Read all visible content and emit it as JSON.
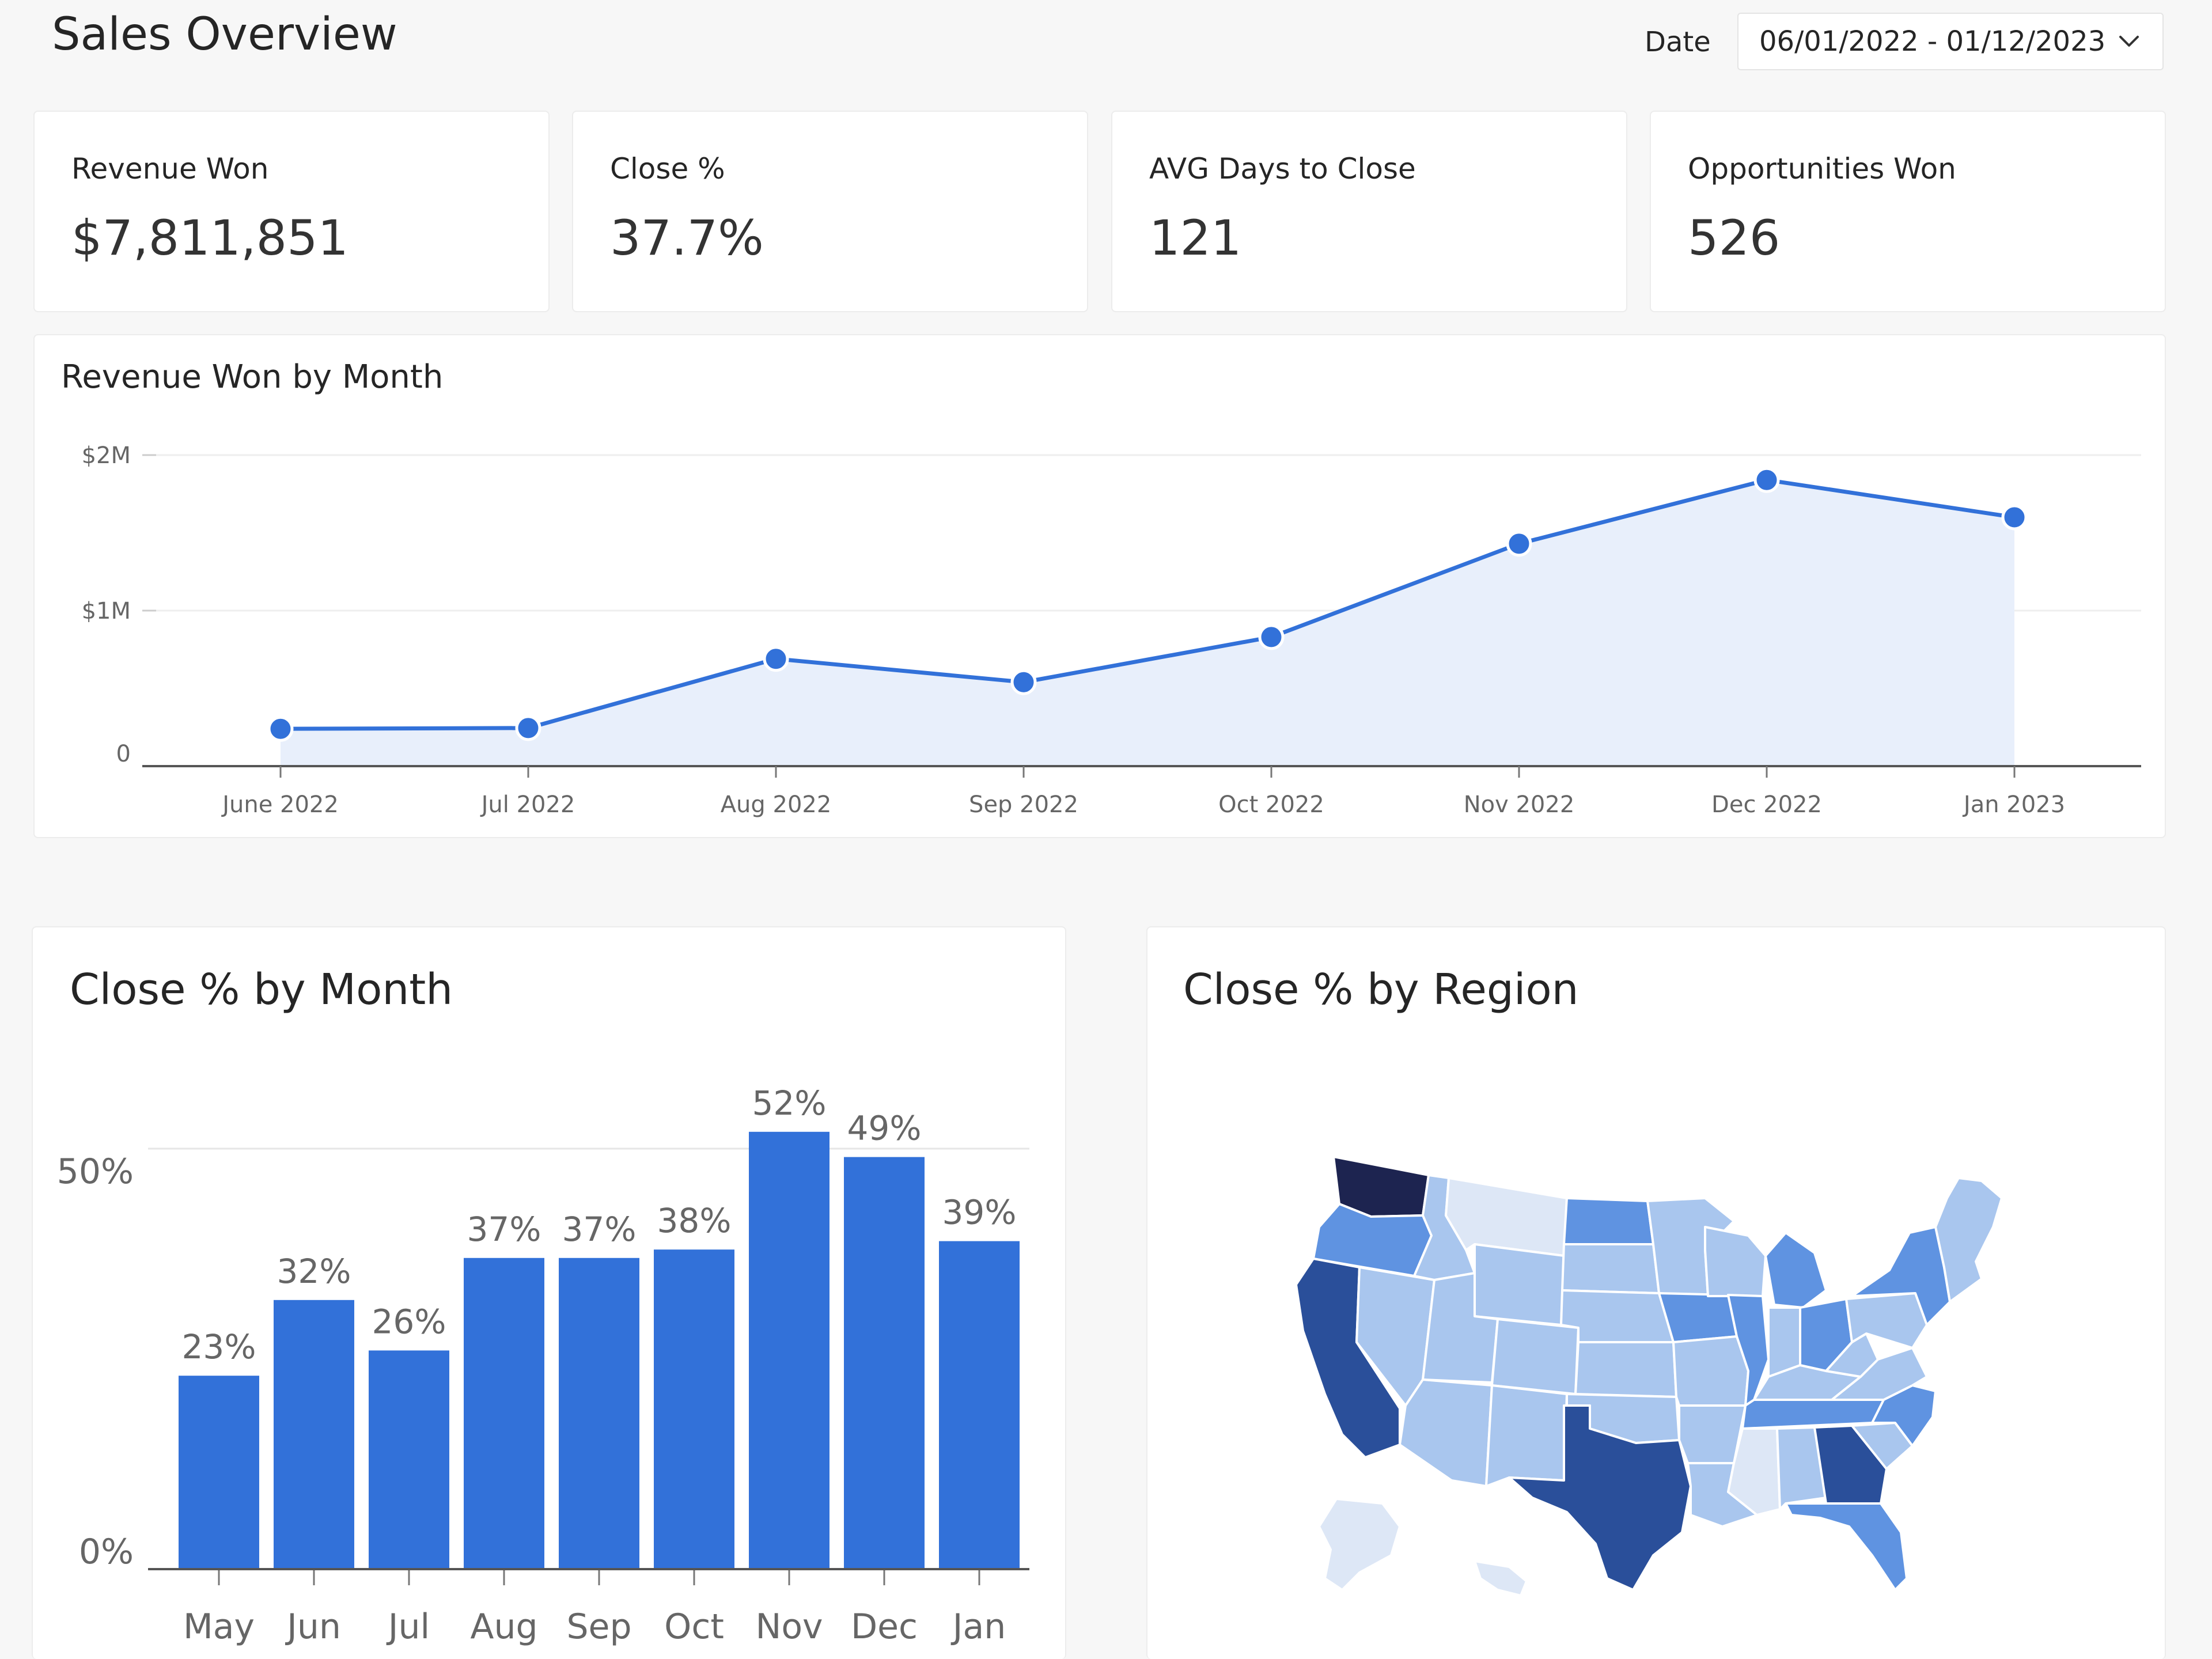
{
  "header": {
    "title": "Sales Overview",
    "date_label": "Date",
    "date_range": "06/01/2022 - 01/12/2023",
    "dropdown_icon": "chevron-down-icon"
  },
  "kpis": [
    {
      "label": "Revenue Won",
      "value": "$7,811,851"
    },
    {
      "label": "Close %",
      "value": "37.7%"
    },
    {
      "label": "AVG Days to Close",
      "value": "121"
    },
    {
      "label": "Opportunities Won",
      "value": "526"
    }
  ],
  "colors": {
    "accent": "#3271d9",
    "area_fill": "#e8effb",
    "map_light": "#dde7f6",
    "map_mid": "#a9c6ee",
    "map_strong": "#5f93e1",
    "map_dark": "#2a4f9a",
    "map_darkest": "#1d2450"
  },
  "chart_data": [
    {
      "type": "area",
      "title": "Revenue Won by Month",
      "x": [
        "June 2022",
        "Jul 2022",
        "Aug 2022",
        "Sep 2022",
        "Oct 2022",
        "Nov 2022",
        "Dec 2022",
        "Jan 2023"
      ],
      "values": [
        240000,
        245000,
        690000,
        540000,
        830000,
        1430000,
        1840000,
        1600000
      ],
      "yticks": [
        {
          "value": 0,
          "label": "0"
        },
        {
          "value": 1000000,
          "label": "$1M"
        },
        {
          "value": 2000000,
          "label": "$2M"
        }
      ],
      "ylim": [
        0,
        2000000
      ],
      "grid": true
    },
    {
      "type": "bar",
      "title": "Close % by Month",
      "categories": [
        "May",
        "Jun",
        "Jul",
        "Aug",
        "Sep",
        "Oct",
        "Nov",
        "Dec",
        "Jan"
      ],
      "values": [
        23,
        32,
        26,
        37,
        37,
        38,
        52,
        49,
        39
      ],
      "data_labels": [
        "23%",
        "32%",
        "26%",
        "37%",
        "37%",
        "38%",
        "52%",
        "49%",
        "39%"
      ],
      "yticks": [
        {
          "value": 0,
          "label": "0%"
        },
        {
          "value": 50,
          "label": "50%"
        }
      ],
      "ylim": [
        0,
        50
      ]
    }
  ],
  "map": {
    "title": "Close % by Region",
    "regions": [
      {
        "name": "washington",
        "level": "darkest"
      },
      {
        "name": "oregon",
        "level": "strong"
      },
      {
        "name": "california",
        "level": "dark"
      },
      {
        "name": "nevada",
        "level": "mid"
      },
      {
        "name": "idaho",
        "level": "mid"
      },
      {
        "name": "montana",
        "level": "light"
      },
      {
        "name": "wyoming",
        "level": "mid"
      },
      {
        "name": "utah",
        "level": "mid"
      },
      {
        "name": "arizona",
        "level": "mid"
      },
      {
        "name": "colorado",
        "level": "mid"
      },
      {
        "name": "new-mexico",
        "level": "mid"
      },
      {
        "name": "north-dakota",
        "level": "strong"
      },
      {
        "name": "south-dakota",
        "level": "mid"
      },
      {
        "name": "nebraska",
        "level": "mid"
      },
      {
        "name": "kansas",
        "level": "mid"
      },
      {
        "name": "oklahoma",
        "level": "mid"
      },
      {
        "name": "texas",
        "level": "dark"
      },
      {
        "name": "minnesota",
        "level": "mid"
      },
      {
        "name": "iowa",
        "level": "strong"
      },
      {
        "name": "missouri",
        "level": "mid"
      },
      {
        "name": "arkansas",
        "level": "mid"
      },
      {
        "name": "louisiana",
        "level": "mid"
      },
      {
        "name": "wisconsin",
        "level": "mid"
      },
      {
        "name": "illinois",
        "level": "strong"
      },
      {
        "name": "michigan",
        "level": "strong"
      },
      {
        "name": "indiana",
        "level": "mid"
      },
      {
        "name": "ohio",
        "level": "strong"
      },
      {
        "name": "kentucky",
        "level": "mid"
      },
      {
        "name": "tennessee",
        "level": "strong"
      },
      {
        "name": "mississippi",
        "level": "light"
      },
      {
        "name": "alabama",
        "level": "mid"
      },
      {
        "name": "georgia",
        "level": "dark"
      },
      {
        "name": "florida",
        "level": "strong"
      },
      {
        "name": "south-carolina",
        "level": "mid"
      },
      {
        "name": "north-carolina",
        "level": "strong"
      },
      {
        "name": "virginia",
        "level": "mid"
      },
      {
        "name": "west-virginia",
        "level": "mid"
      },
      {
        "name": "pennsylvania",
        "level": "mid"
      },
      {
        "name": "new-york",
        "level": "strong"
      },
      {
        "name": "new-england",
        "level": "mid"
      },
      {
        "name": "alaska",
        "level": "light"
      },
      {
        "name": "hawaii",
        "level": "light"
      }
    ]
  }
}
